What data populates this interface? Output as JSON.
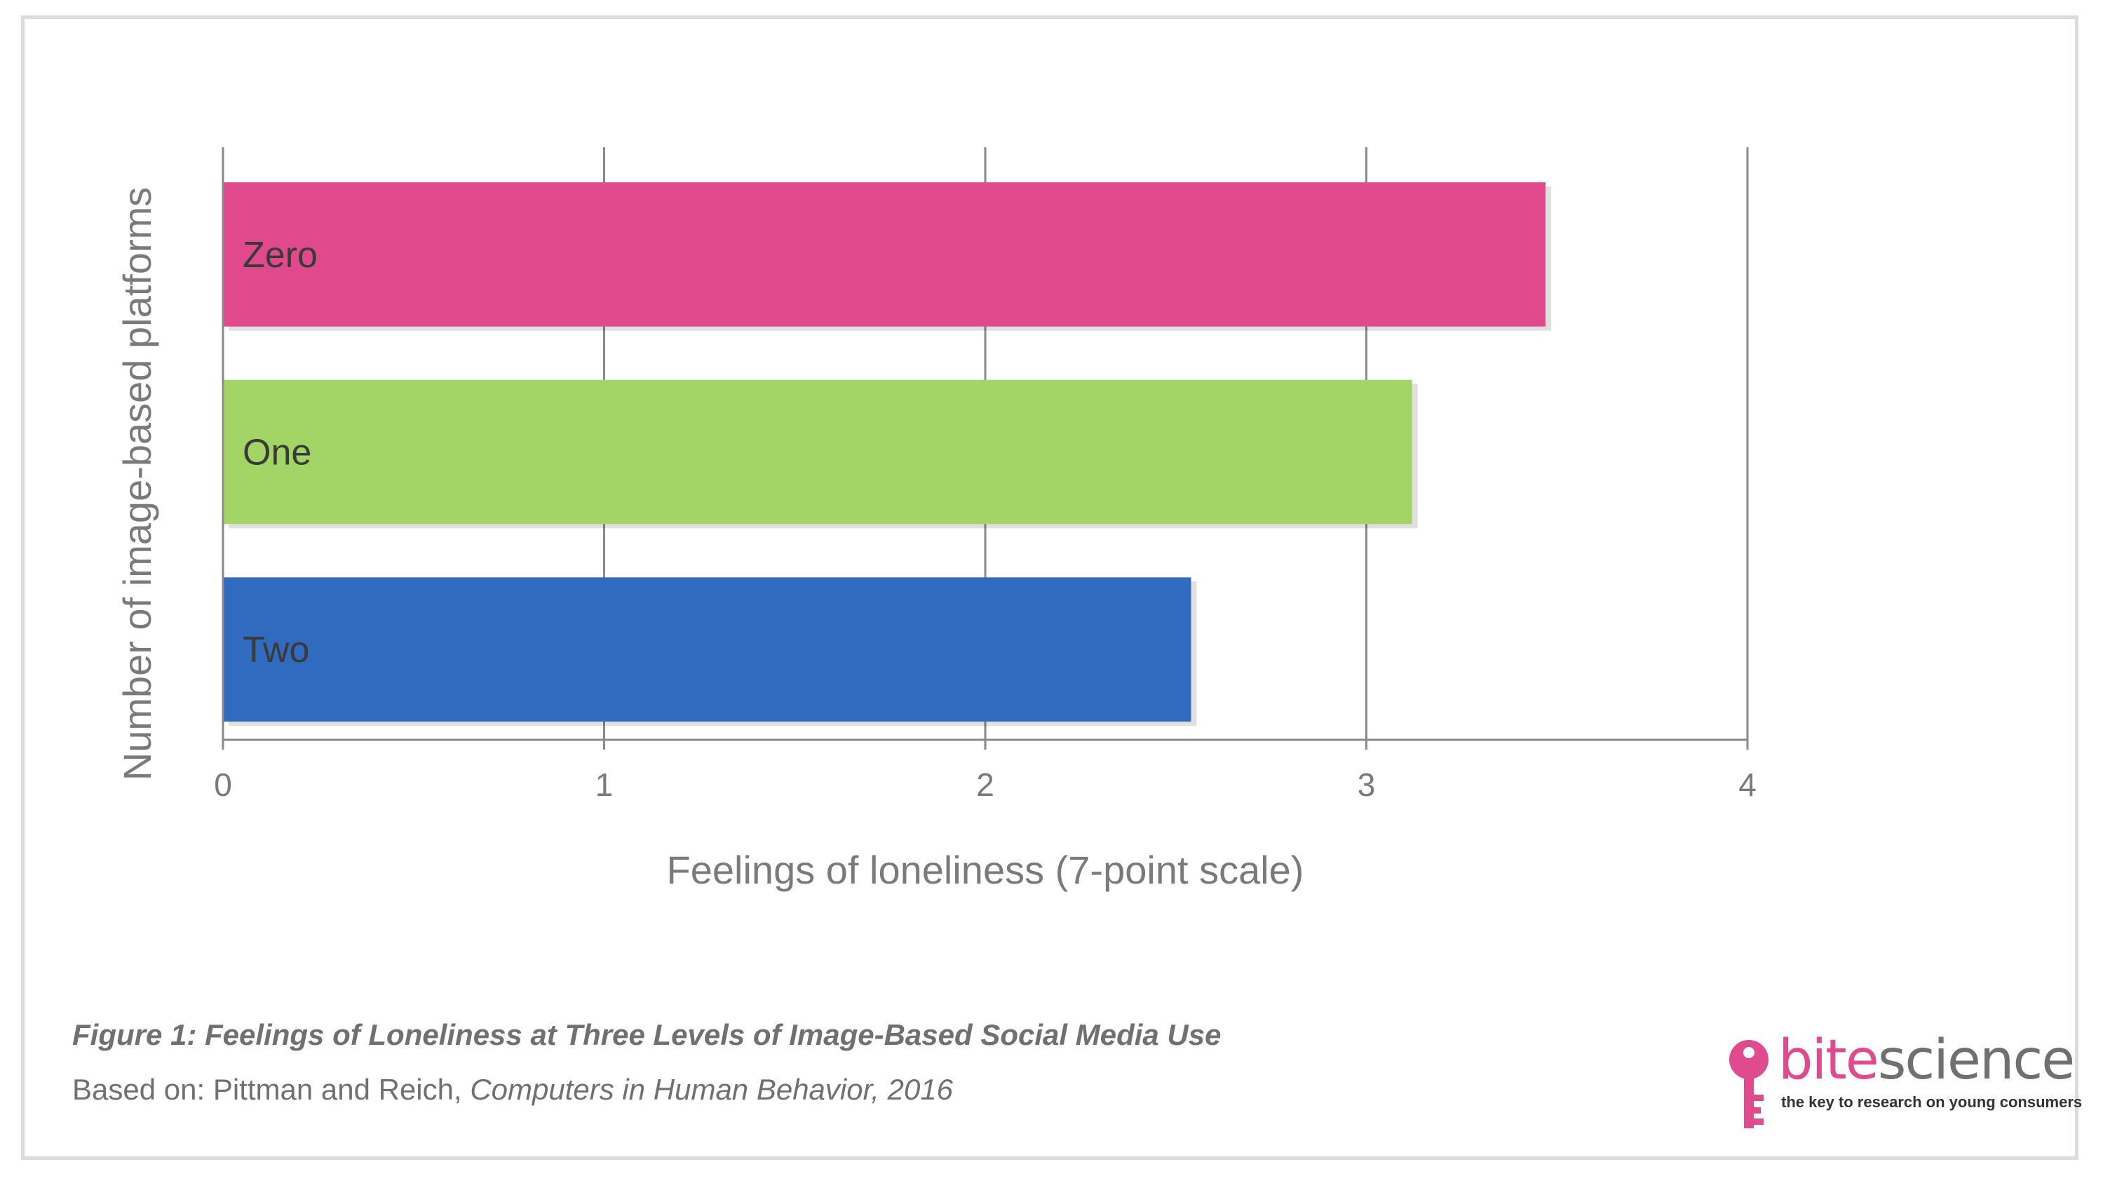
{
  "chart_data": {
    "type": "bar",
    "orientation": "horizontal",
    "categories": [
      "Zero",
      "One",
      "Two"
    ],
    "values": [
      3.47,
      3.12,
      2.54
    ],
    "colors": [
      "#e04a8c",
      "#a2d566",
      "#316bbf"
    ],
    "xlabel": "Feelings of loneliness (7-point scale)",
    "ylabel": "Number of image-based platforms",
    "xlim": [
      0,
      4
    ],
    "xticks": [
      "0",
      "1",
      "2",
      "3",
      "4"
    ],
    "grid": "vertical"
  },
  "caption": {
    "title": "Figure 1: Feelings of Loneliness at Three Levels of Image-Based Social Media Use",
    "source_prefix": "Based on: Pittman and Reich, ",
    "source_journal": "Computers in Human Behavior, 2016"
  },
  "logo": {
    "brand_part1": "bite",
    "brand_part2": "science",
    "tagline": "the key to research on young consumers",
    "icon": "key-icon",
    "accent_color": "#e04a8e"
  }
}
